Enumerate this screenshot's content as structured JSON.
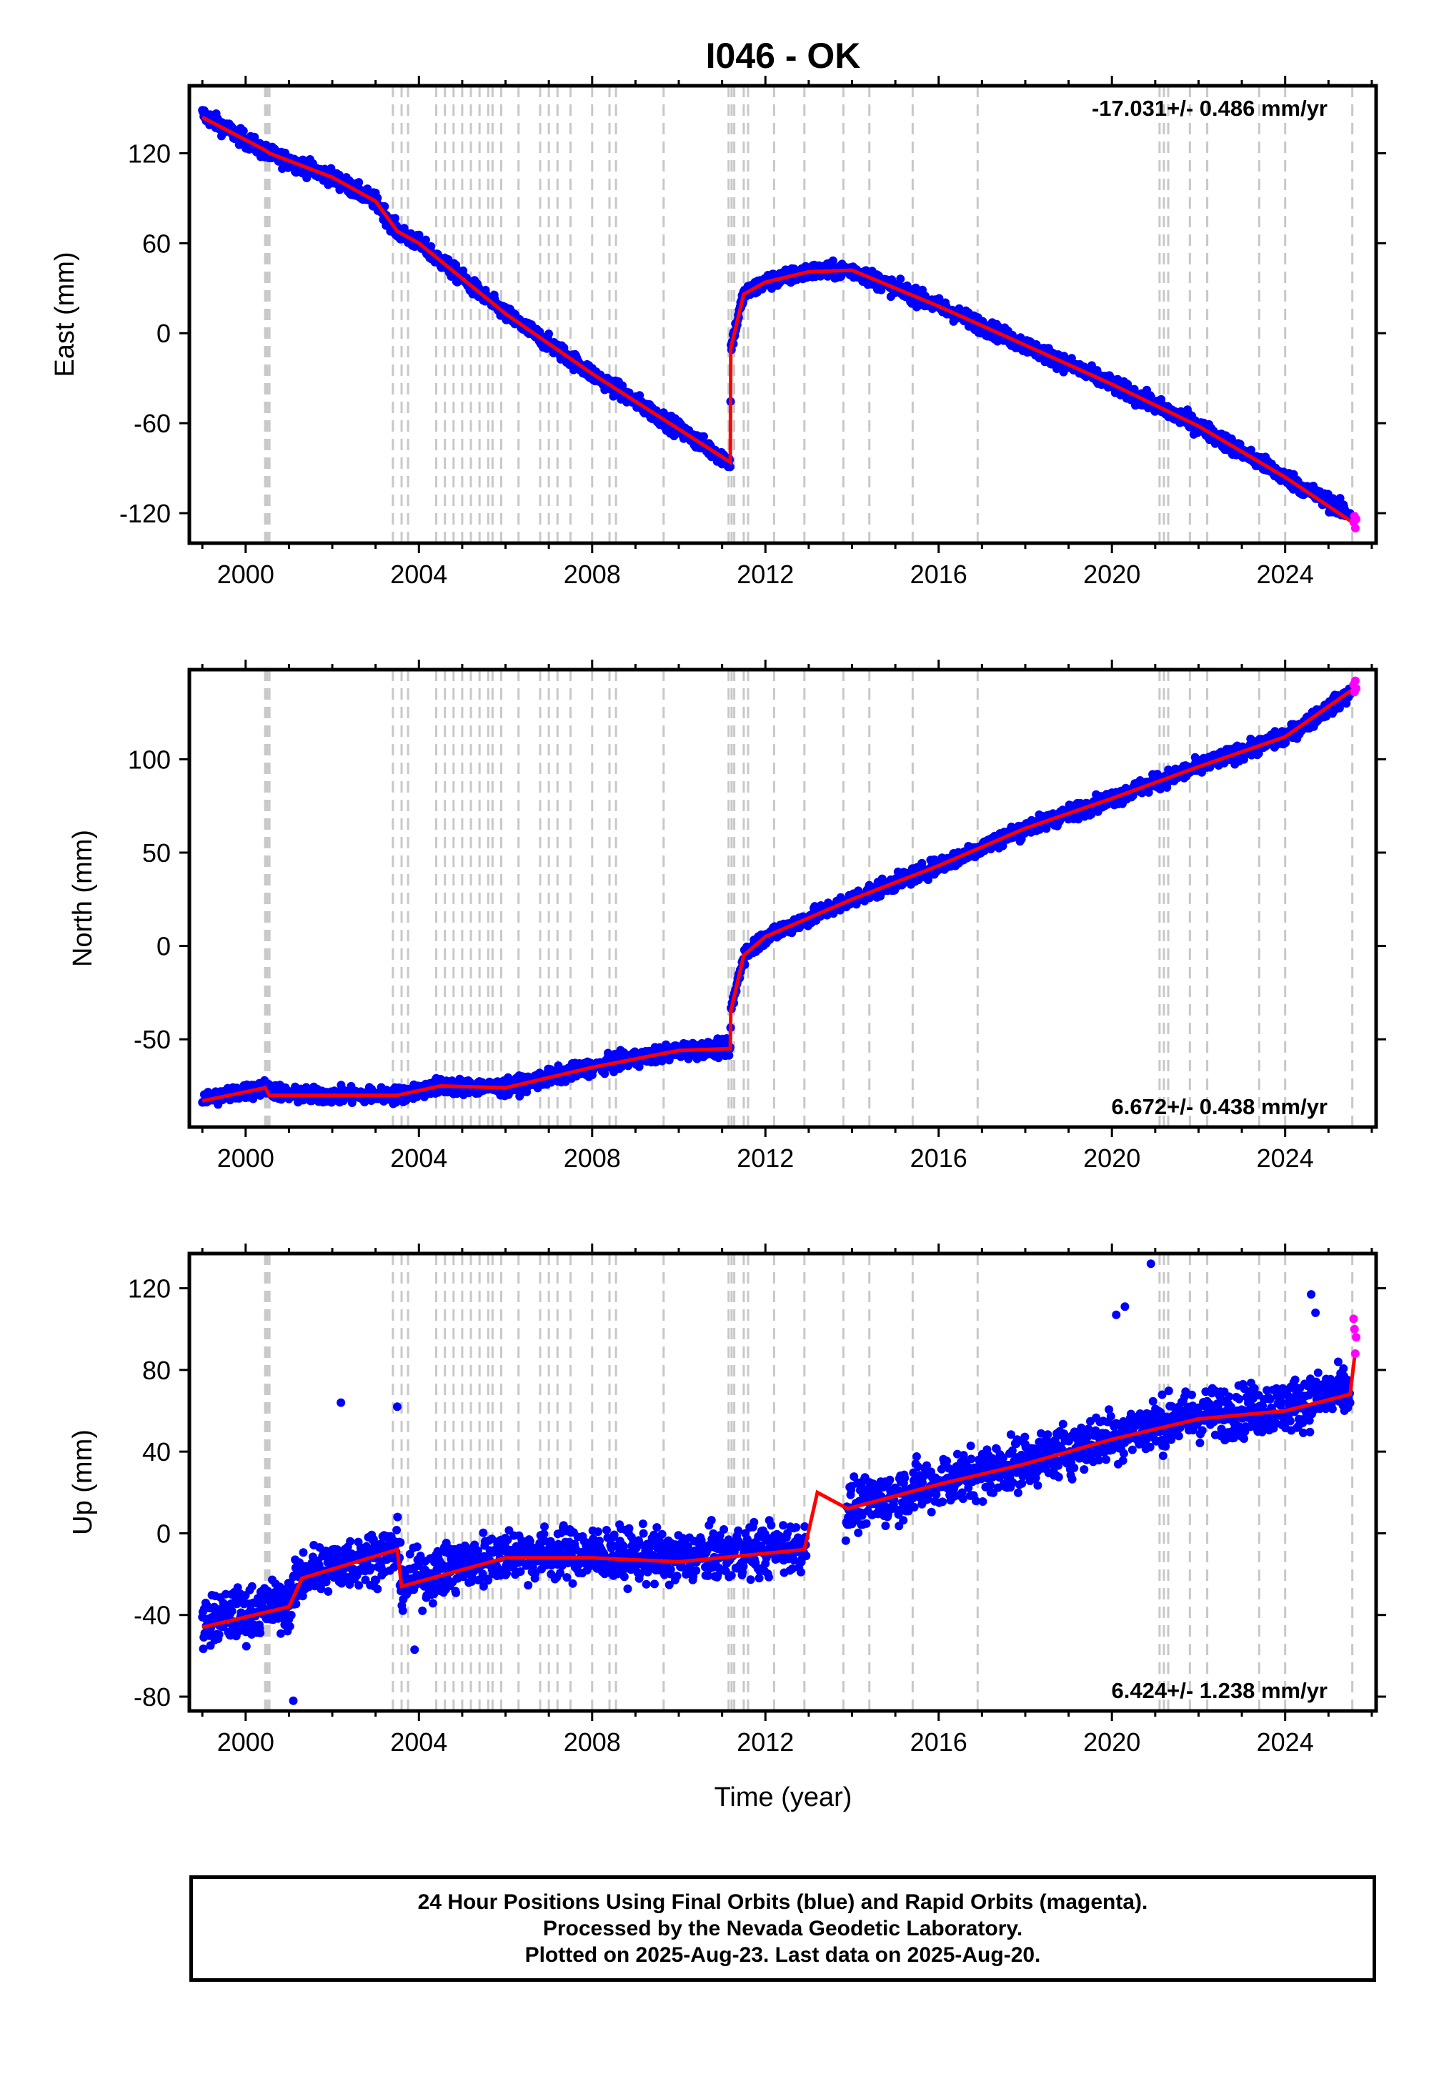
{
  "title": "I046 - OK",
  "xlabel": "Time (year)",
  "colors": {
    "final_points": "#0000ff",
    "rapid_points": "#ff00ff",
    "model": "#ff0000",
    "event_lines": "#c8c8c8",
    "frame": "#000000"
  },
  "event_years": [
    2000.45,
    2000.5,
    2000.55,
    2003.4,
    2003.6,
    2003.75,
    2004.4,
    2004.6,
    2004.8,
    2005.0,
    2005.2,
    2005.4,
    2005.6,
    2005.7,
    2005.9,
    2006.3,
    2006.8,
    2007.0,
    2007.2,
    2007.5,
    2008.0,
    2008.4,
    2008.55,
    2009.65,
    2011.15,
    2011.22,
    2011.28,
    2011.5,
    2011.6,
    2012.2,
    2012.9,
    2013.8,
    2014.4,
    2015.4,
    2016.9,
    2021.1,
    2021.2,
    2021.3,
    2021.8,
    2022.2,
    2023.4,
    2024.0,
    2025.55
  ],
  "chart_data": [
    {
      "type": "scatter",
      "component": "east",
      "ylabel": "East (mm)",
      "xlim": [
        1998.7,
        2026.1
      ],
      "ylim": [
        -140,
        165
      ],
      "x_ticks": [
        2000,
        2004,
        2008,
        2012,
        2016,
        2020,
        2024
      ],
      "y_ticks": [
        -120,
        -60,
        0,
        60,
        120
      ],
      "rate_label": "-17.031+/- 0.486 mm/yr",
      "rate_position": "top-right",
      "scatter_half_width_mm": 5,
      "series": [
        {
          "name": "Final Orbits",
          "color": "#0000ff",
          "x_range": [
            1999.0,
            2025.5
          ],
          "trend": [
            [
              1999.0,
              146
            ],
            [
              2000.5,
              120
            ],
            [
              2002.0,
              104
            ],
            [
              2003.0,
              88
            ],
            [
              2003.5,
              68
            ],
            [
              2004.0,
              60
            ],
            [
              2006.0,
              13
            ],
            [
              2008.0,
              -27
            ],
            [
              2010.0,
              -64
            ],
            [
              2011.19,
              -86
            ],
            [
              2011.2,
              -10
            ],
            [
              2011.5,
              26
            ],
            [
              2012.0,
              34
            ],
            [
              2013.0,
              41
            ],
            [
              2014.0,
              42
            ],
            [
              2016.0,
              18
            ],
            [
              2018.0,
              -8
            ],
            [
              2020.0,
              -34
            ],
            [
              2022.0,
              -62
            ],
            [
              2024.0,
              -96
            ],
            [
              2025.5,
              -121
            ]
          ]
        },
        {
          "name": "Rapid Orbits",
          "color": "#ff00ff",
          "points": [
            [
              2025.58,
              -126
            ],
            [
              2025.6,
              -122
            ],
            [
              2025.62,
              -130
            ],
            [
              2025.64,
              -124
            ]
          ]
        }
      ],
      "model": [
        [
          1999.0,
          144
        ],
        [
          2000.45,
          122
        ],
        [
          2000.55,
          120
        ],
        [
          2002.0,
          104
        ],
        [
          2003.0,
          88
        ],
        [
          2003.5,
          68
        ],
        [
          2004.0,
          60
        ],
        [
          2006.0,
          13
        ],
        [
          2008.0,
          -27
        ],
        [
          2010.0,
          -64
        ],
        [
          2011.19,
          -86
        ],
        [
          2011.2,
          -10
        ],
        [
          2011.5,
          26
        ],
        [
          2012.0,
          34
        ],
        [
          2013.0,
          41
        ],
        [
          2014.0,
          42
        ],
        [
          2016.0,
          18
        ],
        [
          2018.0,
          -8
        ],
        [
          2020.0,
          -34
        ],
        [
          2022.0,
          -62
        ],
        [
          2024.0,
          -96
        ],
        [
          2025.6,
          -127
        ]
      ]
    },
    {
      "type": "scatter",
      "component": "north",
      "ylabel": "North (mm)",
      "xlim": [
        1998.7,
        2026.1
      ],
      "ylim": [
        -97,
        148
      ],
      "x_ticks": [
        2000,
        2004,
        2008,
        2012,
        2016,
        2020,
        2024
      ],
      "y_ticks": [
        -50,
        0,
        50,
        100
      ],
      "rate_label": "6.672+/- 0.438 mm/yr",
      "rate_position": "bottom-right",
      "scatter_half_width_mm": 4,
      "series": [
        {
          "name": "Final Orbits",
          "color": "#0000ff",
          "x_range": [
            1999.0,
            2025.5
          ],
          "trend": [
            [
              1999.0,
              -82
            ],
            [
              2000.5,
              -76
            ],
            [
              2001.0,
              -80
            ],
            [
              2003.5,
              -80
            ],
            [
              2004.5,
              -75
            ],
            [
              2006.0,
              -76
            ],
            [
              2008.0,
              -65
            ],
            [
              2010.0,
              -56
            ],
            [
              2011.19,
              -55
            ],
            [
              2011.2,
              -35
            ],
            [
              2011.5,
              -5
            ],
            [
              2012.0,
              5
            ],
            [
              2013.0,
              15
            ],
            [
              2014.0,
              25
            ],
            [
              2016.0,
              43
            ],
            [
              2018.0,
              63
            ],
            [
              2020.0,
              79
            ],
            [
              2022.0,
              96
            ],
            [
              2024.0,
              112
            ],
            [
              2025.5,
              135
            ]
          ]
        },
        {
          "name": "Rapid Orbits",
          "color": "#ff00ff",
          "points": [
            [
              2025.58,
              140
            ],
            [
              2025.6,
              136
            ],
            [
              2025.62,
              142
            ],
            [
              2025.64,
              138
            ]
          ]
        }
      ],
      "model": [
        [
          1999.0,
          -83
        ],
        [
          2000.45,
          -76
        ],
        [
          2000.55,
          -80
        ],
        [
          2003.5,
          -80
        ],
        [
          2004.5,
          -75
        ],
        [
          2006.0,
          -76
        ],
        [
          2008.0,
          -65
        ],
        [
          2010.0,
          -56
        ],
        [
          2011.19,
          -55
        ],
        [
          2011.2,
          -35
        ],
        [
          2011.5,
          -5
        ],
        [
          2012.0,
          5
        ],
        [
          2013.0,
          15
        ],
        [
          2014.0,
          25
        ],
        [
          2016.0,
          43
        ],
        [
          2018.0,
          63
        ],
        [
          2020.0,
          79
        ],
        [
          2022.0,
          96
        ],
        [
          2024.0,
          112
        ],
        [
          2025.6,
          138
        ]
      ]
    },
    {
      "type": "scatter",
      "component": "up",
      "ylabel": "Up (mm)",
      "xlim": [
        1998.7,
        2026.1
      ],
      "ylim": [
        -87,
        137
      ],
      "x_ticks": [
        2000,
        2004,
        2008,
        2012,
        2016,
        2020,
        2024
      ],
      "y_ticks": [
        -80,
        -40,
        0,
        40,
        80,
        120
      ],
      "rate_label": "6.424+/- 1.238 mm/yr",
      "rate_position": "bottom-right",
      "scatter_half_width_mm": 12,
      "series": [
        {
          "name": "Final Orbits",
          "color": "#0000ff",
          "x_range": [
            1999.0,
            2025.5
          ],
          "gap": [
            2012.95,
            2013.85
          ],
          "trend": [
            [
              1999.0,
              -44
            ],
            [
              2001.0,
              -34
            ],
            [
              2001.3,
              -20
            ],
            [
              2003.5,
              -8
            ],
            [
              2003.6,
              -24
            ],
            [
              2006.0,
              -10
            ],
            [
              2008.0,
              -10
            ],
            [
              2010.0,
              -12
            ],
            [
              2012.9,
              -6
            ],
            [
              2013.9,
              12
            ],
            [
              2016.0,
              25
            ],
            [
              2018.0,
              35
            ],
            [
              2020.0,
              48
            ],
            [
              2022.0,
              58
            ],
            [
              2024.0,
              62
            ],
            [
              2025.5,
              70
            ]
          ]
        },
        {
          "name": "Rapid Orbits",
          "color": "#ff00ff",
          "points": [
            [
              2025.58,
              105
            ],
            [
              2025.6,
              100
            ],
            [
              2025.62,
              88
            ],
            [
              2025.64,
              96
            ]
          ]
        }
      ],
      "model": [
        [
          1999.0,
          -46
        ],
        [
          2001.0,
          -36
        ],
        [
          2001.3,
          -22
        ],
        [
          2003.5,
          -8
        ],
        [
          2003.6,
          -26
        ],
        [
          2006.0,
          -12
        ],
        [
          2008.0,
          -12
        ],
        [
          2010.0,
          -14
        ],
        [
          2012.9,
          -8
        ],
        [
          2013.2,
          20
        ],
        [
          2013.9,
          12
        ],
        [
          2016.0,
          24
        ],
        [
          2018.0,
          34
        ],
        [
          2020.0,
          46
        ],
        [
          2022.0,
          56
        ],
        [
          2024.0,
          60
        ],
        [
          2025.5,
          68
        ],
        [
          2025.6,
          86
        ]
      ],
      "outliers": [
        [
          2020.9,
          132
        ],
        [
          2020.3,
          111
        ],
        [
          2020.1,
          107
        ],
        [
          2024.6,
          117
        ],
        [
          2003.5,
          62
        ],
        [
          2002.2,
          64
        ],
        [
          2001.1,
          -82
        ],
        [
          2003.9,
          -57
        ],
        [
          2024.7,
          108
        ]
      ]
    }
  ],
  "footer": {
    "line1": "24 Hour Positions Using Final Orbits (blue) and Rapid Orbits (magenta).",
    "line2": "Processed by the Nevada Geodetic Laboratory.",
    "line3": "Plotted on 2025-Aug-23. Last data on 2025-Aug-20."
  }
}
